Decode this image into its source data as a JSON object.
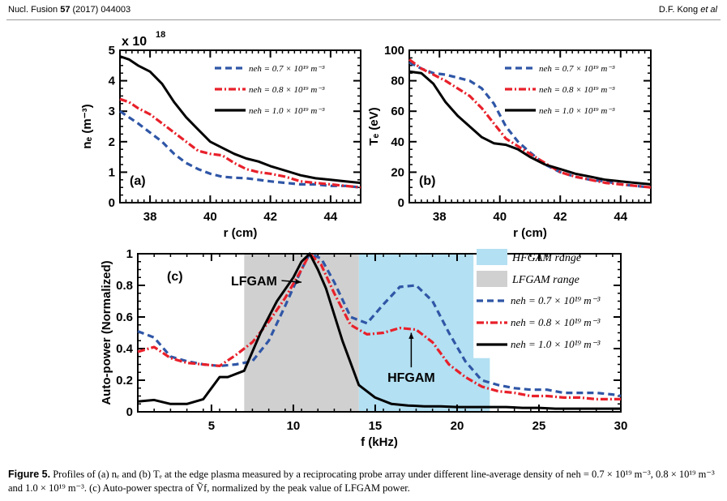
{
  "header": {
    "journal": "Nucl. Fusion",
    "volume": "57",
    "article": "(2017) 044003",
    "author_prefix": "D.F. Kong ",
    "author_etal": "et al"
  },
  "caption": {
    "label": "Figure 5.",
    "text": "Profiles of (a) nₑ and (b) Tₑ at the edge plasma measured by a reciprocating probe array under different line-average density of neh = 0.7 × 10¹⁹ m⁻³, 0.8 × 10¹⁹ m⁻³ and 1.0 × 10¹⁹ m⁻³. (c) Auto-power spectra of Ṽf, normalized by the peak value of LFGAM power."
  },
  "colors": {
    "blue": "#2f56a6",
    "red": "#e8202a",
    "black": "#000000",
    "hfgam_fill": "#b3e0f2",
    "lfgam_fill": "#d0d0d0"
  },
  "chart_data": [
    {
      "id": "a",
      "type": "line",
      "panel_label": "(a)",
      "ylabel": "nₑ (m⁻³)",
      "y_multiplier": "x 10",
      "y_multiplier_exp": "18",
      "xlabel": "r (cm)",
      "xlim": [
        37,
        45
      ],
      "ylim": [
        0,
        5
      ],
      "xticks": [
        38,
        40,
        42,
        44
      ],
      "yticks": [
        0,
        1,
        2,
        3,
        4,
        5
      ],
      "legend_position": "top-right",
      "series": [
        {
          "name": "neh = 0.7 × 10¹⁹ m⁻³",
          "color": "#2f56a6",
          "style": "dashed",
          "x": [
            37.0,
            37.3,
            37.6,
            38.0,
            38.4,
            38.8,
            39.2,
            39.6,
            40.0,
            40.4,
            40.8,
            41.2,
            41.6,
            42.0,
            42.5,
            43.0,
            43.5,
            44.0,
            44.5,
            45.0
          ],
          "y": [
            3.0,
            2.8,
            2.6,
            2.3,
            2.0,
            1.6,
            1.3,
            1.1,
            0.95,
            0.85,
            0.82,
            0.8,
            0.75,
            0.7,
            0.65,
            0.6,
            0.6,
            0.55,
            0.55,
            0.5
          ]
        },
        {
          "name": "neh = 0.8 × 10¹⁹ m⁻³",
          "color": "#e8202a",
          "style": "dashdot",
          "x": [
            37.0,
            37.3,
            37.6,
            38.0,
            38.4,
            38.8,
            39.2,
            39.6,
            40.0,
            40.4,
            40.8,
            41.2,
            41.6,
            42.0,
            42.5,
            43.0,
            43.5,
            44.0,
            44.5,
            45.0
          ],
          "y": [
            3.4,
            3.3,
            3.1,
            2.9,
            2.6,
            2.3,
            2.0,
            1.7,
            1.6,
            1.55,
            1.3,
            1.1,
            1.0,
            0.95,
            0.85,
            0.7,
            0.65,
            0.6,
            0.55,
            0.5
          ]
        },
        {
          "name": "neh = 1.0 × 10¹⁹ m⁻³",
          "color": "#000000",
          "style": "solid",
          "x": [
            37.0,
            37.3,
            37.6,
            38.0,
            38.4,
            38.8,
            39.2,
            39.6,
            40.0,
            40.4,
            40.8,
            41.2,
            41.6,
            42.0,
            42.5,
            43.0,
            43.5,
            44.0,
            44.5,
            45.0
          ],
          "y": [
            4.8,
            4.7,
            4.5,
            4.3,
            3.9,
            3.3,
            2.8,
            2.4,
            2.0,
            1.8,
            1.6,
            1.45,
            1.35,
            1.2,
            1.05,
            0.9,
            0.8,
            0.75,
            0.7,
            0.65
          ]
        }
      ]
    },
    {
      "id": "b",
      "type": "line",
      "panel_label": "(b)",
      "ylabel": "Tₑ (eV)",
      "xlabel": "r (cm)",
      "xlim": [
        37,
        45
      ],
      "ylim": [
        0,
        100
      ],
      "xticks": [
        38,
        40,
        42,
        44
      ],
      "yticks": [
        0,
        20,
        40,
        60,
        80,
        100
      ],
      "legend_position": "top-right",
      "series": [
        {
          "name": "neh = 0.7 × 10¹⁹ m⁻³",
          "color": "#2f56a6",
          "style": "dashed",
          "x": [
            37.0,
            37.4,
            37.8,
            38.2,
            38.6,
            39.0,
            39.4,
            39.8,
            40.2,
            40.6,
            41.0,
            41.5,
            42.0,
            42.5,
            43.0,
            43.5,
            44.0,
            44.5,
            45.0
          ],
          "y": [
            92,
            88,
            85,
            84,
            82,
            80,
            75,
            65,
            50,
            40,
            33,
            25,
            20,
            17,
            15,
            14,
            12,
            11,
            10
          ]
        },
        {
          "name": "neh = 0.8 × 10¹⁹ m⁻³",
          "color": "#e8202a",
          "style": "dashdot",
          "x": [
            37.0,
            37.4,
            37.8,
            38.2,
            38.6,
            39.0,
            39.4,
            39.8,
            40.2,
            40.6,
            41.0,
            41.5,
            42.0,
            42.5,
            43.0,
            43.5,
            44.0,
            44.5,
            45.0
          ],
          "y": [
            94,
            88,
            84,
            80,
            75,
            70,
            62,
            52,
            42,
            37,
            32,
            26,
            20,
            17,
            15,
            13,
            12,
            11,
            10
          ]
        },
        {
          "name": "neh = 1.0 × 10¹⁹ m⁻³",
          "color": "#000000",
          "style": "solid",
          "x": [
            37.0,
            37.4,
            37.8,
            38.2,
            38.6,
            39.0,
            39.4,
            39.8,
            40.2,
            40.6,
            41.0,
            41.5,
            42.0,
            42.5,
            43.0,
            43.5,
            44.0,
            44.5,
            45.0
          ],
          "y": [
            86,
            85,
            78,
            66,
            57,
            50,
            43,
            39,
            38,
            35,
            30,
            25,
            22,
            19,
            17,
            15,
            14,
            13,
            12
          ]
        }
      ]
    },
    {
      "id": "c",
      "type": "line",
      "panel_label": "(c)",
      "ylabel": "Auto-power (Normalized)",
      "xlabel": "f (kHz)",
      "xlim": [
        0.5,
        30
      ],
      "ylim": [
        0,
        1
      ],
      "xticks": [
        5,
        10,
        15,
        20,
        25,
        30
      ],
      "yticks": [
        0,
        0.2,
        0.4,
        0.6,
        0.8,
        1
      ],
      "ytick_labels": [
        "0",
        "0.2",
        "0.4",
        "0.6",
        "0.8",
        "1"
      ],
      "legend_position": "right",
      "shaded_ranges": [
        {
          "name": "HFGAM range",
          "color": "#b3e0f2",
          "x_from": 14.0,
          "x_to": 21.0,
          "x_step_to": 22.0,
          "y_step": 0.34,
          "y_top": 1.0
        },
        {
          "name": "LFGAM range",
          "color": "#d0d0d0",
          "x_from": 7.0,
          "x_to": 14.0,
          "y_top": 1.0
        }
      ],
      "annotations": [
        {
          "text": "LFGAM",
          "x": 10.5,
          "y": 0.82,
          "label_x": 7.6,
          "label_y": 0.83
        },
        {
          "text": "HFGAM",
          "x": 17.2,
          "y": 0.5,
          "label_x": 17.2,
          "label_y": 0.22
        }
      ],
      "series": [
        {
          "name": "neh = 0.7 × 10¹⁹ m⁻³",
          "color": "#2f56a6",
          "style": "dashed",
          "x": [
            0.5,
            1.5,
            2.5,
            3.5,
            4.5,
            5.5,
            6.5,
            7.5,
            8.5,
            9.5,
            10.5,
            11.0,
            11.7,
            12.5,
            13.5,
            14.5,
            15.5,
            16.5,
            17.5,
            18.5,
            19.5,
            20.5,
            21.5,
            22.5,
            23.5,
            24.5,
            25.5,
            26.5,
            27.5,
            28.5,
            29.5,
            30.0
          ],
          "y": [
            0.51,
            0.47,
            0.35,
            0.32,
            0.3,
            0.29,
            0.3,
            0.32,
            0.45,
            0.67,
            0.9,
            1.0,
            0.97,
            0.82,
            0.6,
            0.56,
            0.68,
            0.79,
            0.8,
            0.7,
            0.5,
            0.32,
            0.2,
            0.17,
            0.15,
            0.14,
            0.14,
            0.12,
            0.12,
            0.12,
            0.11,
            0.1
          ]
        },
        {
          "name": "neh = 0.8 × 10¹⁹ m⁻³",
          "color": "#e8202a",
          "style": "dashdot",
          "x": [
            0.5,
            1.5,
            2.5,
            3.5,
            4.5,
            5.5,
            6.5,
            7.5,
            8.5,
            9.5,
            10.5,
            11.0,
            11.7,
            12.5,
            13.5,
            14.5,
            15.5,
            16.5,
            17.5,
            18.5,
            19.5,
            20.5,
            21.5,
            22.5,
            23.5,
            24.5,
            25.5,
            26.5,
            27.5,
            28.5,
            29.5,
            30.0
          ],
          "y": [
            0.38,
            0.41,
            0.34,
            0.31,
            0.3,
            0.29,
            0.36,
            0.44,
            0.57,
            0.72,
            0.9,
            1.0,
            0.93,
            0.75,
            0.55,
            0.49,
            0.5,
            0.53,
            0.52,
            0.44,
            0.3,
            0.22,
            0.16,
            0.13,
            0.12,
            0.1,
            0.1,
            0.09,
            0.09,
            0.08,
            0.08,
            0.08
          ]
        },
        {
          "name": "neh = 1.0 × 10¹⁹ m⁻³",
          "color": "#000000",
          "style": "solid",
          "x": [
            0.5,
            1.5,
            2.5,
            3.5,
            4.5,
            5.5,
            6.0,
            7.0,
            8.0,
            9.0,
            10.0,
            10.5,
            11.0,
            11.5,
            12.0,
            13.0,
            14.0,
            15.0,
            16.0,
            17.0,
            18.0,
            19.0,
            20.0,
            21.0,
            22.0,
            23.0,
            24.0,
            25.0,
            26.0,
            27.0,
            28.0,
            29.0,
            30.0
          ],
          "y": [
            0.065,
            0.075,
            0.05,
            0.05,
            0.08,
            0.22,
            0.22,
            0.26,
            0.5,
            0.7,
            0.85,
            0.95,
            1.0,
            0.9,
            0.78,
            0.45,
            0.17,
            0.09,
            0.05,
            0.04,
            0.035,
            0.035,
            0.03,
            0.03,
            0.03,
            0.03,
            0.025,
            0.025,
            0.02,
            0.02,
            0.02,
            0.02,
            0.02
          ]
        }
      ]
    }
  ]
}
